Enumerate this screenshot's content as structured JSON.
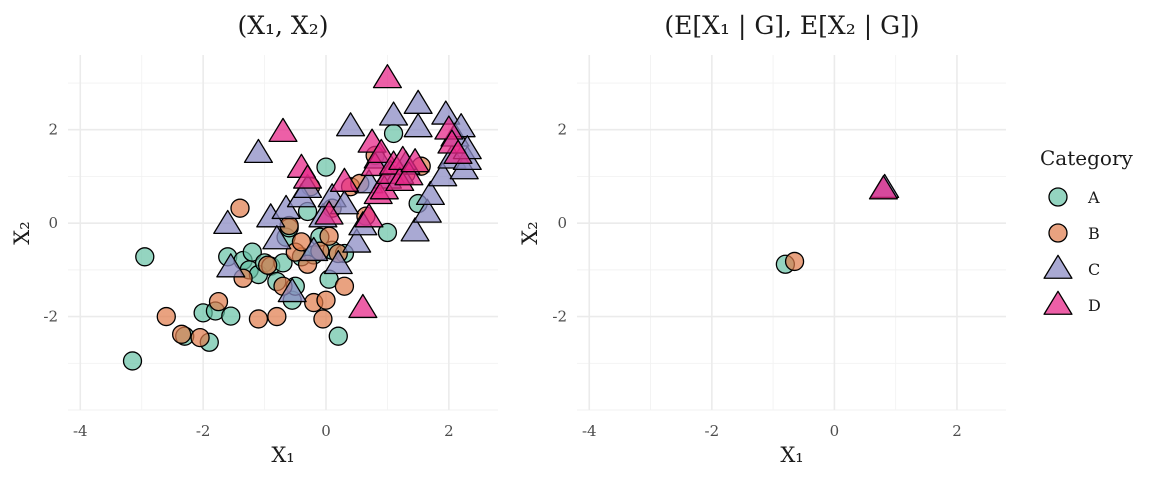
{
  "legend": {
    "title": "Category",
    "items": [
      {
        "label": "A",
        "shape": "circle",
        "color": "#66C2A5"
      },
      {
        "label": "B",
        "shape": "circle",
        "color": "#E07B4A"
      },
      {
        "label": "C",
        "shape": "triangle",
        "color": "#8C8CC4"
      },
      {
        "label": "D",
        "shape": "triangle",
        "color": "#E7298A"
      }
    ]
  },
  "chart_data": [
    {
      "type": "scatter",
      "title": "(X₁, X₂)",
      "xlabel": "X₁",
      "ylabel": "X₂",
      "xlim": [
        -4.2,
        2.8
      ],
      "ylim": [
        -4.0,
        3.6
      ],
      "xticks": [
        -4,
        -2,
        0,
        2
      ],
      "yticks": [
        -2,
        0,
        2
      ],
      "grid": true,
      "series": [
        {
          "name": "A",
          "points": [
            [
              -3.15,
              -2.95
            ],
            [
              -2.95,
              -0.72
            ],
            [
              -2.3,
              -2.42
            ],
            [
              -2.0,
              -1.92
            ],
            [
              -1.9,
              -2.55
            ],
            [
              -1.8,
              -1.88
            ],
            [
              -1.6,
              -0.72
            ],
            [
              -1.55,
              -1.99
            ],
            [
              -1.35,
              -0.8
            ],
            [
              -1.25,
              -1.0
            ],
            [
              -1.2,
              -0.62
            ],
            [
              -1.1,
              -1.1
            ],
            [
              -1.0,
              -0.85
            ],
            [
              -0.9,
              -0.92
            ],
            [
              -0.8,
              -1.25
            ],
            [
              -0.7,
              -0.85
            ],
            [
              -0.65,
              -0.3
            ],
            [
              -0.6,
              -0.1
            ],
            [
              -0.55,
              -1.65
            ],
            [
              -0.5,
              -1.35
            ],
            [
              -0.4,
              -0.72
            ],
            [
              -0.3,
              0.25
            ],
            [
              -0.2,
              -0.68
            ],
            [
              -0.1,
              -0.3
            ],
            [
              0.0,
              1.2
            ],
            [
              0.05,
              -1.2
            ],
            [
              0.1,
              -0.58
            ],
            [
              0.2,
              -2.42
            ],
            [
              0.3,
              -0.65
            ],
            [
              1.0,
              -0.2
            ],
            [
              1.1,
              1.92
            ],
            [
              1.5,
              0.42
            ]
          ]
        },
        {
          "name": "B",
          "points": [
            [
              -2.6,
              -2.0
            ],
            [
              -2.35,
              -2.38
            ],
            [
              -2.05,
              -2.45
            ],
            [
              -1.75,
              -1.68
            ],
            [
              -1.4,
              0.32
            ],
            [
              -1.35,
              -1.18
            ],
            [
              -1.1,
              -2.05
            ],
            [
              -0.95,
              -0.9
            ],
            [
              -0.8,
              -2.0
            ],
            [
              -0.7,
              -1.35
            ],
            [
              -0.6,
              -0.05
            ],
            [
              -0.5,
              -0.62
            ],
            [
              -0.4,
              -0.4
            ],
            [
              -0.3,
              -0.88
            ],
            [
              -0.25,
              0.78
            ],
            [
              -0.2,
              -1.7
            ],
            [
              -0.1,
              -0.6
            ],
            [
              -0.05,
              -2.05
            ],
            [
              0.0,
              -1.65
            ],
            [
              0.05,
              -0.28
            ],
            [
              0.1,
              0.32
            ],
            [
              0.2,
              -0.65
            ],
            [
              0.3,
              -1.35
            ],
            [
              0.4,
              0.78
            ],
            [
              0.55,
              0.85
            ],
            [
              0.65,
              0.15
            ],
            [
              0.8,
              1.45
            ],
            [
              1.3,
              1.05
            ],
            [
              1.55,
              1.22
            ]
          ]
        },
        {
          "name": "C",
          "points": [
            [
              -1.6,
              -0.02
            ],
            [
              -1.55,
              -0.95
            ],
            [
              -1.1,
              1.5
            ],
            [
              -0.9,
              0.12
            ],
            [
              -0.8,
              -0.35
            ],
            [
              -0.65,
              0.3
            ],
            [
              -0.55,
              -1.48
            ],
            [
              -0.4,
              0.55
            ],
            [
              -0.3,
              0.75
            ],
            [
              -0.2,
              -0.6
            ],
            [
              -0.05,
              0.12
            ],
            [
              0.1,
              0.55
            ],
            [
              0.2,
              -0.88
            ],
            [
              0.3,
              0.4
            ],
            [
              0.4,
              2.07
            ],
            [
              0.5,
              -0.42
            ],
            [
              0.6,
              -0.05
            ],
            [
              0.7,
              0.85
            ],
            [
              0.85,
              1.38
            ],
            [
              1.0,
              0.95
            ],
            [
              1.1,
              2.3
            ],
            [
              1.2,
              1.05
            ],
            [
              1.3,
              1.25
            ],
            [
              1.45,
              -0.18
            ],
            [
              1.5,
              2.05
            ],
            [
              1.5,
              2.55
            ],
            [
              1.65,
              0.22
            ],
            [
              1.7,
              0.6
            ],
            [
              1.9,
              1.0
            ],
            [
              1.95,
              2.32
            ],
            [
              2.05,
              1.38
            ],
            [
              2.1,
              1.85
            ],
            [
              2.2,
              2.05
            ],
            [
              2.25,
              1.15
            ],
            [
              2.3,
              1.35
            ],
            [
              2.3,
              1.58
            ]
          ]
        },
        {
          "name": "D",
          "points": [
            [
              -0.7,
              1.95
            ],
            [
              -0.4,
              1.18
            ],
            [
              -0.3,
              0.95
            ],
            [
              0.05,
              0.18
            ],
            [
              0.3,
              0.88
            ],
            [
              0.6,
              -1.82
            ],
            [
              0.7,
              0.12
            ],
            [
              0.75,
              1.72
            ],
            [
              0.8,
              1.22
            ],
            [
              0.85,
              0.62
            ],
            [
              0.9,
              1.5
            ],
            [
              0.95,
              0.72
            ],
            [
              1.0,
              3.1
            ],
            [
              1.05,
              1.05
            ],
            [
              1.1,
              1.25
            ],
            [
              1.2,
              0.9
            ],
            [
              1.25,
              1.35
            ],
            [
              1.35,
              1.02
            ],
            [
              1.45,
              1.3
            ],
            [
              2.0,
              2.0
            ],
            [
              2.05,
              1.7
            ],
            [
              2.15,
              1.48
            ]
          ]
        }
      ]
    },
    {
      "type": "scatter",
      "title": "(E[X₁ | G], E[X₂ | G])",
      "xlabel": "X₁",
      "ylabel": "X₂",
      "xlim": [
        -4.2,
        2.8
      ],
      "ylim": [
        -4.0,
        3.6
      ],
      "xticks": [
        -4,
        -2,
        0,
        2
      ],
      "yticks": [
        -2,
        0,
        2
      ],
      "grid": true,
      "series": [
        {
          "name": "A",
          "points": [
            [
              -0.8,
              -0.88
            ]
          ]
        },
        {
          "name": "B",
          "points": [
            [
              -0.65,
              -0.82
            ]
          ]
        },
        {
          "name": "C",
          "points": [
            [
              0.82,
              0.75
            ]
          ]
        },
        {
          "name": "D",
          "points": [
            [
              0.8,
              0.72
            ]
          ]
        }
      ]
    }
  ]
}
